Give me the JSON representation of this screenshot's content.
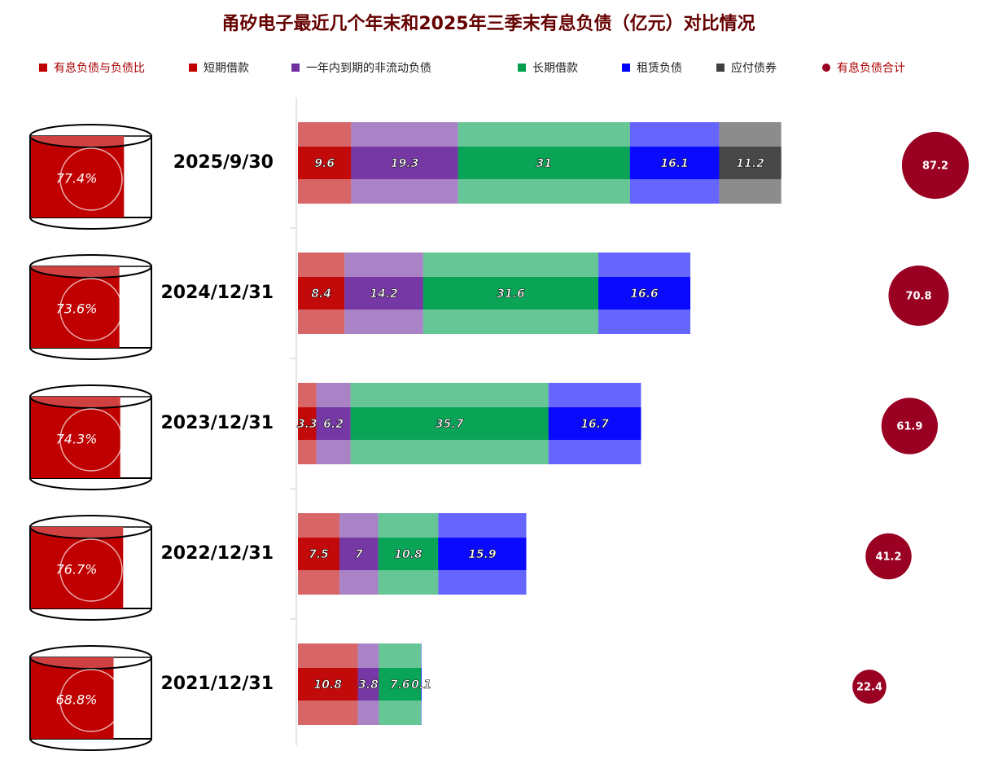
{
  "chart_data": {
    "type": "bar",
    "orientation": "horizontal",
    "stacked": true,
    "title": "甬矽电子最近几个年末和2025年三季末有息负债（亿元）对比情况",
    "categories": [
      "2025/9/30",
      "2024/12/31",
      "2023/12/31",
      "2022/12/31",
      "2021/12/31"
    ],
    "xlim": [
      0,
      120
    ],
    "series": [
      {
        "name": "短期借款",
        "color": "#c00000",
        "values": [
          9.6,
          8.4,
          3.3,
          7.5,
          10.8
        ]
      },
      {
        "name": "一年内到期的非流动负债",
        "color": "#7030a0",
        "values": [
          19.3,
          14.2,
          6.2,
          7.0,
          3.8
        ]
      },
      {
        "name": "长期借款",
        "color": "#00a050",
        "values": [
          31.0,
          31.6,
          35.7,
          10.8,
          7.6
        ]
      },
      {
        "name": "租赁负债",
        "color": "#0000ff",
        "values": [
          16.1,
          16.6,
          16.7,
          15.9,
          0.1
        ]
      },
      {
        "name": "应付债券",
        "color": "#404040",
        "values": [
          11.2,
          null,
          null,
          null,
          null
        ]
      }
    ],
    "ratio": {
      "name": "有息负债与负债比",
      "color": "#c00000",
      "values": [
        77.4,
        73.6,
        74.3,
        76.7,
        68.8
      ],
      "value_labels": [
        "77.4%",
        "73.6%",
        "74.3%",
        "76.7%",
        "68.8%"
      ]
    },
    "total": {
      "name": "有息负债合计",
      "color": "#990022",
      "values": [
        87.2,
        70.8,
        61.9,
        41.2,
        22.4
      ]
    }
  }
}
